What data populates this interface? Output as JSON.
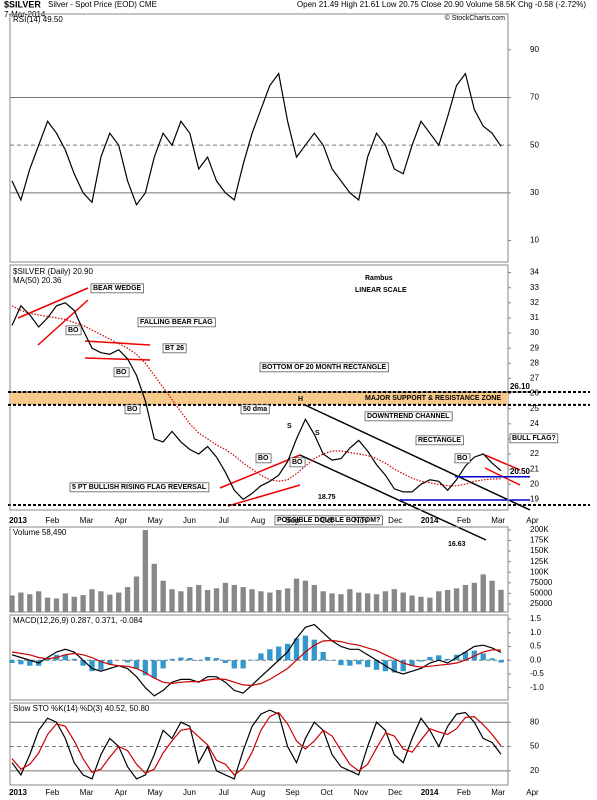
{
  "header": {
    "symbol": "$SILVER",
    "description": "Silver - Spot Price (EOD) CME",
    "date": "7-Mar-2014",
    "quote": "Open 21.49 High 21.61 Low 20.75 Close 20.90 Volume 58.5K Chg -0.58 (-2.72%)",
    "watermark": "© StockCharts.com"
  },
  "months": [
    "2013",
    "Feb",
    "Mar",
    "Apr",
    "May",
    "Jun",
    "Jul",
    "Aug",
    "Sep",
    "Oct",
    "Nov",
    "Dec",
    "2014",
    "Feb",
    "Mar",
    "Apr"
  ],
  "chart_data": [
    {
      "type": "line",
      "title": "RSI(14) 49.50",
      "ylim": [
        1,
        105
      ],
      "yticks": [
        90,
        70,
        50,
        30,
        10
      ],
      "hlines": [
        70,
        50,
        30
      ],
      "series": [
        {
          "color": "#000000",
          "values": [
            35,
            27,
            40,
            50,
            60,
            55,
            48,
            38,
            30,
            26,
            45,
            55,
            50,
            35,
            25,
            30,
            45,
            55,
            50,
            60,
            55,
            40,
            45,
            35,
            30,
            27,
            42,
            55,
            65,
            75,
            80,
            60,
            45,
            50,
            55,
            50,
            40,
            35,
            30,
            27,
            45,
            55,
            50,
            40,
            38,
            50,
            60,
            55,
            50,
            62,
            75,
            80,
            65,
            58,
            55,
            49.5
          ]
        }
      ]
    },
    {
      "type": "line",
      "ylim": [
        18.3,
        34.5
      ],
      "yticks": [
        34,
        33,
        32,
        31,
        30,
        29,
        28,
        27,
        26,
        25,
        24,
        23,
        22,
        21,
        20,
        19
      ],
      "zone": [
        25.25,
        26.1
      ],
      "levels": [
        {
          "value": 26.1,
          "label": "26.10",
          "color": "#000000"
        },
        {
          "value": 20.5,
          "label": "20.50",
          "color": "#0000cc"
        }
      ],
      "series": [
        {
          "name": "$SILVER (Daily) 20.90",
          "color": "#000000",
          "values": [
            30.5,
            31.8,
            31.2,
            30.4,
            31.0,
            31.8,
            32.0,
            31.5,
            30.2,
            29.0,
            28.7,
            28.6,
            28.9,
            28.3,
            27.2,
            25.5,
            23.0,
            22.8,
            23.5,
            22.8,
            22.3,
            22.0,
            22.5,
            21.8,
            20.8,
            19.6,
            19.0,
            19.4,
            19.9,
            20.2,
            20.6,
            21.5,
            23.0,
            24.3,
            23.3,
            22.0,
            21.6,
            21.7,
            22.4,
            22.9,
            22.2,
            21.3,
            20.6,
            19.7,
            19.5,
            19.5,
            20.0,
            20.3,
            20.2,
            19.6,
            20.3,
            21.2,
            21.8,
            22.0,
            21.4,
            20.9
          ]
        },
        {
          "name": "MA(50) 20.36",
          "color": "#cc0000",
          "style": "dotted",
          "values": [
            31.8,
            31.5,
            31.3,
            31.2,
            31.1,
            31.0,
            30.9,
            30.7,
            30.5,
            30.2,
            29.9,
            29.6,
            29.3,
            29.0,
            28.6,
            28.0,
            27.2,
            26.4,
            25.6,
            24.8,
            24.0,
            23.4,
            23.0,
            22.6,
            22.3,
            21.9,
            21.4,
            21.0,
            20.6,
            20.3,
            20.2,
            20.3,
            20.7,
            21.2,
            21.7,
            22.0,
            22.2,
            22.2,
            22.1,
            22.0,
            21.9,
            21.7,
            21.4,
            21.0,
            20.7,
            20.4,
            20.2,
            20.1,
            20.0,
            19.9,
            19.9,
            20.0,
            20.2,
            20.3,
            20.35,
            20.36
          ]
        }
      ],
      "annotations": [
        "BEAR WEDGE",
        "BO",
        "FALLING BEAR FLAG",
        "BT 26",
        "BO",
        "BO",
        "BOTTOM OF 20 MONTH RECTANGLE",
        "MAJOR SUPPORT & RESISTANCE ZONE",
        "H",
        "50 dma",
        "DOWNTREND CHANNEL",
        "RECTANGLE",
        "BO",
        "BULL FLAG?",
        "BO",
        "BO",
        "S",
        "S",
        "5 PT BULLISH RISING FLAG REVERSAL",
        "POSSIBLE DOUBLE BOTTOM?",
        "Rambus",
        "LINEAR SCALE",
        "18.75",
        "16.63"
      ]
    },
    {
      "type": "bar",
      "title": "Volume 58,490",
      "color": "#888888",
      "ylim": [
        6000,
        207000
      ],
      "yticks": [
        {
          "value": 200000,
          "label": "200K"
        },
        {
          "value": 175000,
          "label": "175K"
        },
        {
          "value": 150000,
          "label": "150K"
        },
        {
          "value": 125000,
          "label": "125K"
        },
        {
          "value": 100000,
          "label": "100K"
        },
        75000,
        50000,
        25000
      ],
      "values": [
        45000,
        52000,
        48000,
        55000,
        40000,
        38000,
        50000,
        42000,
        46000,
        60000,
        55000,
        47000,
        52000,
        65000,
        90000,
        200000,
        120000,
        80000,
        60000,
        55000,
        65000,
        70000,
        58000,
        62000,
        75000,
        70000,
        65000,
        60000,
        55000,
        52000,
        58000,
        62000,
        85000,
        80000,
        70000,
        55000,
        50000,
        48000,
        60000,
        52000,
        50000,
        48000,
        55000,
        60000,
        52000,
        45000,
        42000,
        40000,
        55000,
        58000,
        62000,
        70000,
        75000,
        95000,
        80000,
        58490
      ]
    },
    {
      "type": "line",
      "title": "MACD(12,26,9) 0.287, 0.371, -0.084",
      "ylim": [
        -1.45,
        1.65
      ],
      "yticks": [
        1.5,
        {
          "value": 1,
          "label": "1.0"
        },
        0.5,
        {
          "value": 0,
          "label": "0.0"
        },
        -0.5,
        {
          "value": -1,
          "label": "-1.0"
        }
      ],
      "hlines": [
        0
      ],
      "series": [
        {
          "kind": "bar",
          "color": "#3399cc",
          "values": [
            -0.1,
            -0.15,
            -0.2,
            -0.2,
            0.05,
            0.2,
            0.2,
            0.05,
            -0.2,
            -0.4,
            -0.35,
            -0.15,
            0,
            -0.08,
            -0.3,
            -0.55,
            -0.65,
            -0.3,
            0.05,
            0.1,
            0.08,
            -0.02,
            0.12,
            0.08,
            -0.1,
            -0.3,
            -0.3,
            0.02,
            0.25,
            0.4,
            0.5,
            0.6,
            0.8,
            0.9,
            0.75,
            0.3,
            -0.02,
            -0.18,
            -0.2,
            -0.15,
            -0.25,
            -0.35,
            -0.4,
            -0.45,
            -0.4,
            -0.2,
            -0.05,
            0.12,
            0.18,
            0.05,
            0.2,
            0.3,
            0.35,
            0.25,
            0.07,
            -0.084
          ]
        },
        {
          "color": "#000000",
          "values": [
            0.2,
            0.1,
            0,
            -0.1,
            0.1,
            0.3,
            0.4,
            0.3,
            0,
            -0.3,
            -0.4,
            -0.3,
            -0.2,
            -0.3,
            -0.6,
            -1.0,
            -1.3,
            -1.1,
            -0.8,
            -0.7,
            -0.7,
            -0.8,
            -0.6,
            -0.6,
            -0.8,
            -1.1,
            -1.2,
            -0.9,
            -0.6,
            -0.3,
            0,
            0.3,
            0.8,
            1.2,
            1.3,
            1.0,
            0.7,
            0.5,
            0.4,
            0.4,
            0.2,
            0,
            -0.2,
            -0.4,
            -0.5,
            -0.4,
            -0.3,
            -0.1,
            0,
            -0.1,
            0.1,
            0.3,
            0.5,
            0.55,
            0.45,
            0.287
          ]
        },
        {
          "color": "#cc0000",
          "values": [
            0.3,
            0.25,
            0.2,
            0.1,
            0.05,
            0.1,
            0.2,
            0.25,
            0.2,
            0.1,
            -0.05,
            -0.15,
            -0.2,
            -0.22,
            -0.3,
            -0.45,
            -0.65,
            -0.8,
            -0.85,
            -0.8,
            -0.78,
            -0.78,
            -0.72,
            -0.68,
            -0.7,
            -0.8,
            -0.9,
            -0.92,
            -0.85,
            -0.7,
            -0.5,
            -0.3,
            0,
            0.3,
            0.55,
            0.7,
            0.72,
            0.68,
            0.6,
            0.55,
            0.45,
            0.35,
            0.2,
            0.05,
            -0.1,
            -0.2,
            -0.25,
            -0.22,
            -0.18,
            -0.15,
            -0.1,
            0,
            0.15,
            0.3,
            0.38,
            0.371
          ]
        }
      ]
    },
    {
      "type": "line",
      "title": "Slow STO %K(14) %D(3) 40.52, 50.80",
      "ylim": [
        2.5,
        103.75
      ],
      "yticks": [
        80,
        50,
        20
      ],
      "hlines": [
        80,
        50,
        20
      ],
      "series": [
        {
          "color": "#000000",
          "values": [
            30,
            15,
            40,
            70,
            85,
            80,
            60,
            30,
            15,
            10,
            40,
            60,
            50,
            25,
            10,
            15,
            40,
            70,
            60,
            80,
            75,
            30,
            50,
            20,
            15,
            10,
            45,
            75,
            90,
            95,
            90,
            50,
            30,
            60,
            80,
            70,
            40,
            25,
            20,
            15,
            50,
            80,
            70,
            40,
            30,
            60,
            85,
            70,
            50,
            75,
            90,
            92,
            80,
            60,
            55,
            40.52
          ]
        },
        {
          "color": "#cc0000",
          "values": [
            35,
            22,
            28,
            42,
            65,
            78,
            75,
            57,
            35,
            18,
            22,
            37,
            50,
            45,
            28,
            17,
            22,
            42,
            57,
            70,
            72,
            62,
            52,
            33,
            28,
            15,
            23,
            43,
            70,
            87,
            92,
            78,
            57,
            47,
            57,
            70,
            63,
            45,
            28,
            20,
            28,
            48,
            67,
            63,
            47,
            43,
            58,
            72,
            68,
            65,
            72,
            86,
            87,
            77,
            65,
            50.8
          ]
        }
      ]
    }
  ]
}
